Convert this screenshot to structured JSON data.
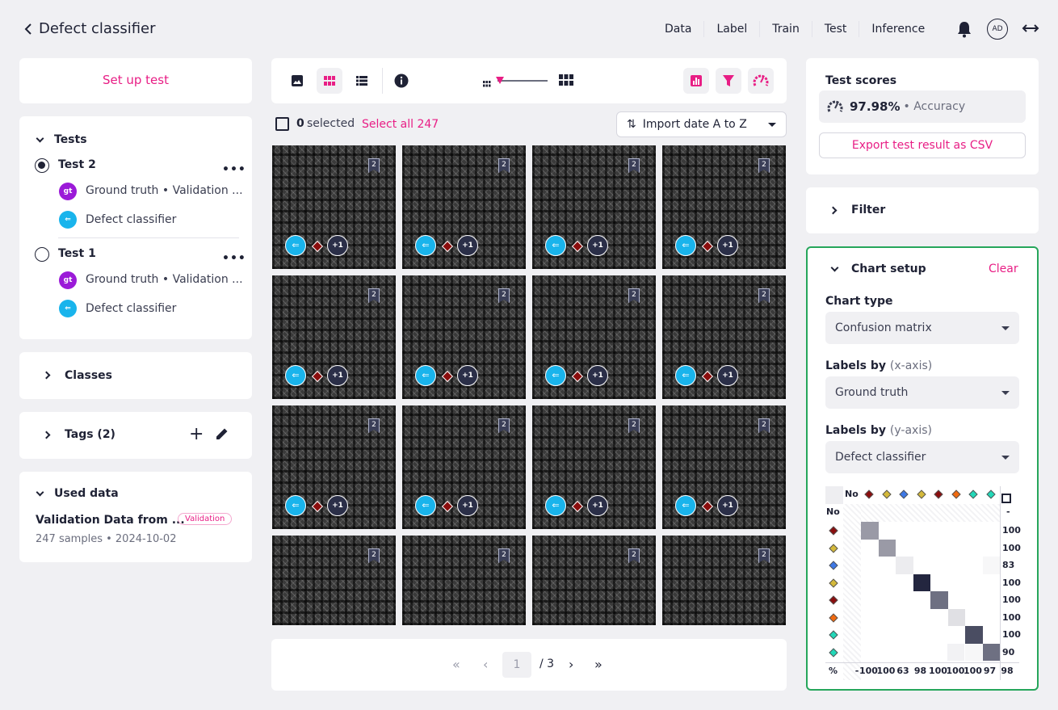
{
  "header": {
    "title": "Defect classifier",
    "nav": [
      "Data",
      "Label",
      "Train",
      "Test",
      "Inference"
    ],
    "active_nav": "Label",
    "avatar": "AD"
  },
  "left": {
    "setup_test": "Set up test",
    "tests_heading": "Tests",
    "tests": [
      {
        "name": "Test 2",
        "selected": true,
        "gt_badge": "gt",
        "ground_truth": "Ground truth • Validation ...",
        "model": "Defect classifier"
      },
      {
        "name": "Test 1",
        "selected": false,
        "gt_badge": "gt",
        "ground_truth": "Ground truth • Validation ...",
        "model": "Defect classifier"
      }
    ],
    "classes_heading": "Classes",
    "tags_heading": "Tags (2)",
    "used_data_heading": "Used data",
    "dataset_name": "Validation Data from ...",
    "dataset_badge": "Validation",
    "dataset_meta": "247 samples • 2024-10-02"
  },
  "center": {
    "selected_count": "0",
    "selected_label": "selected",
    "select_all": "Select all 247",
    "sort": "Import date A to Z",
    "tile_tag": "2",
    "tile_plus": "+1",
    "pagination": {
      "page": "1",
      "total": "/ 3"
    }
  },
  "right": {
    "scores_heading": "Test scores",
    "accuracy_value": "97.98%",
    "accuracy_label": "• Accuracy",
    "export": "Export test result as CSV",
    "filter_heading": "Filter",
    "chart_setup_heading": "Chart setup",
    "clear": "Clear",
    "chart_type_label": "Chart type",
    "chart_type_value": "Confusion matrix",
    "x_label": "Labels by",
    "x_axis": "(x-axis)",
    "x_value": "Ground truth",
    "y_label": "Labels by",
    "y_axis": "(y-axis)",
    "y_value": "Defect classifier"
  },
  "confusion_matrix": {
    "header_no": "No",
    "row_no": "No",
    "row_no_value": "-",
    "pct_label": "%",
    "class_colors": [
      "#8b0e0e",
      "#d4b93a",
      "#3d78e6",
      "#d4b93a",
      "#8b0e0e",
      "#f06a0f",
      "#22d8b8",
      "#22d8b8"
    ],
    "row_values": [
      "100",
      "100",
      "83",
      "100",
      "100",
      "100",
      "100",
      "90"
    ],
    "col_values": [
      "-",
      "100",
      "100",
      "63",
      "98",
      "100",
      "100",
      "100",
      "97",
      "98"
    ],
    "diagonal_shades": [
      "#9a9aa6",
      "#9a9aa6",
      "#ececef",
      "#23263f",
      "#6e7082",
      "#e0e0e4",
      "#4a4d62",
      "#6e7082"
    ]
  }
}
